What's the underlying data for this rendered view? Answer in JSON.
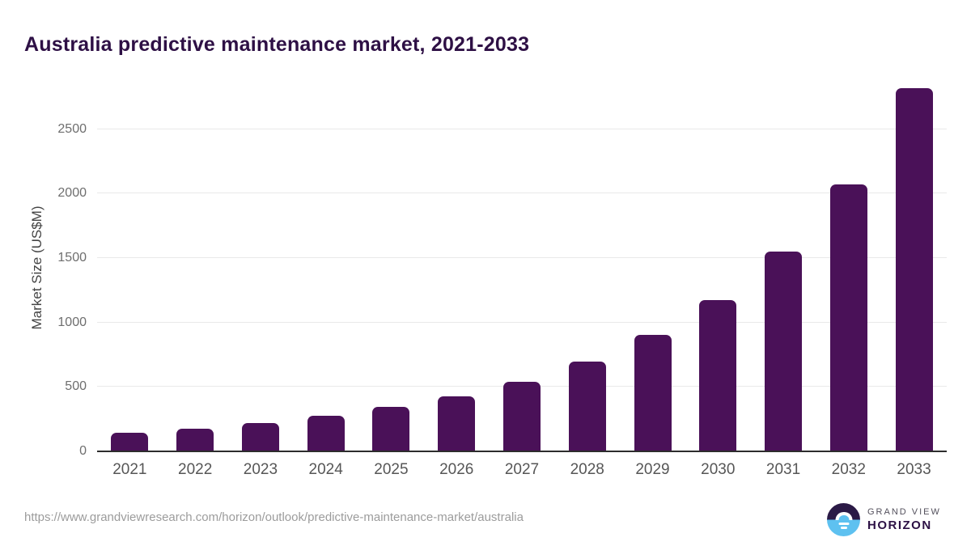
{
  "chart_data": {
    "type": "bar",
    "title": "Australia predictive maintenance market, 2021-2033",
    "categories": [
      "2021",
      "2022",
      "2023",
      "2024",
      "2025",
      "2026",
      "2027",
      "2028",
      "2029",
      "2030",
      "2031",
      "2032",
      "2033"
    ],
    "values": [
      144,
      176,
      218,
      274,
      345,
      427,
      542,
      696,
      906,
      1172,
      1548,
      2072,
      2818
    ],
    "xlabel": "",
    "ylabel": "Market Size (US$M)",
    "ylim": [
      0,
      2850
    ],
    "yticks": [
      0,
      500,
      1000,
      1500,
      2000,
      2500
    ],
    "grid": true,
    "legend": false,
    "bar_color": "#4a1158",
    "gridline_color": "#e9e9e9",
    "axis_line_color": "#2d2d2d",
    "ytick_label_color": "#6e6e6e",
    "xtick_label_color": "#565656"
  },
  "footer": {
    "source_url": "https://www.grandviewresearch.com/horizon/outlook/predictive-maintenance-market/australia",
    "logo": {
      "brand_top": "GRAND VIEW",
      "brand_bottom": "HORIZON",
      "mark_top_color": "#2b1a46",
      "mark_bottom_color": "#5ec1f0"
    }
  },
  "colors": {
    "title": "#2e1045",
    "background": "#ffffff",
    "axis_title": "#434343",
    "url_text": "#9c9c9c"
  }
}
